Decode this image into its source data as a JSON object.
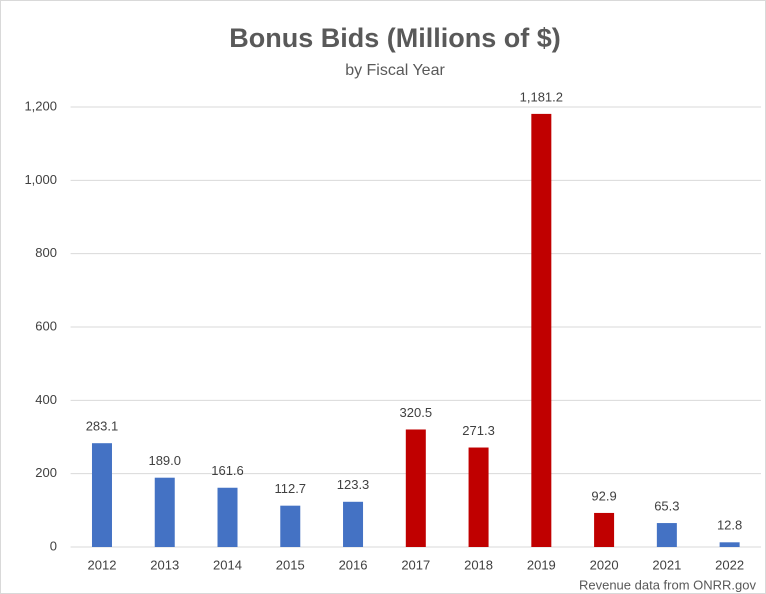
{
  "chart_data": {
    "type": "bar",
    "title": "Bonus Bids (Millions of $)",
    "subtitle": "by Fiscal Year",
    "categories": [
      "2012",
      "2013",
      "2014",
      "2015",
      "2016",
      "2017",
      "2018",
      "2019",
      "2020",
      "2021",
      "2022"
    ],
    "values": [
      283.1,
      189.0,
      161.6,
      112.7,
      123.3,
      320.5,
      271.3,
      1181.2,
      92.9,
      65.3,
      12.8
    ],
    "value_labels": [
      "283.1",
      "189.0",
      "161.6",
      "112.7",
      "123.3",
      "320.5",
      "271.3",
      "1,181.2",
      "92.9",
      "65.3",
      "12.8"
    ],
    "colors": [
      "#4472c4",
      "#4472c4",
      "#4472c4",
      "#4472c4",
      "#4472c4",
      "#c00000",
      "#c00000",
      "#c00000",
      "#c00000",
      "#4472c4",
      "#4472c4"
    ],
    "ylim": [
      0,
      1200
    ],
    "yticks": [
      0,
      200,
      400,
      600,
      800,
      {
        "value": 1000,
        "label": "1,000"
      },
      {
        "value": 1200,
        "label": "1,200"
      }
    ],
    "grid": true,
    "source": "Revenue data from ONRR.gov"
  }
}
